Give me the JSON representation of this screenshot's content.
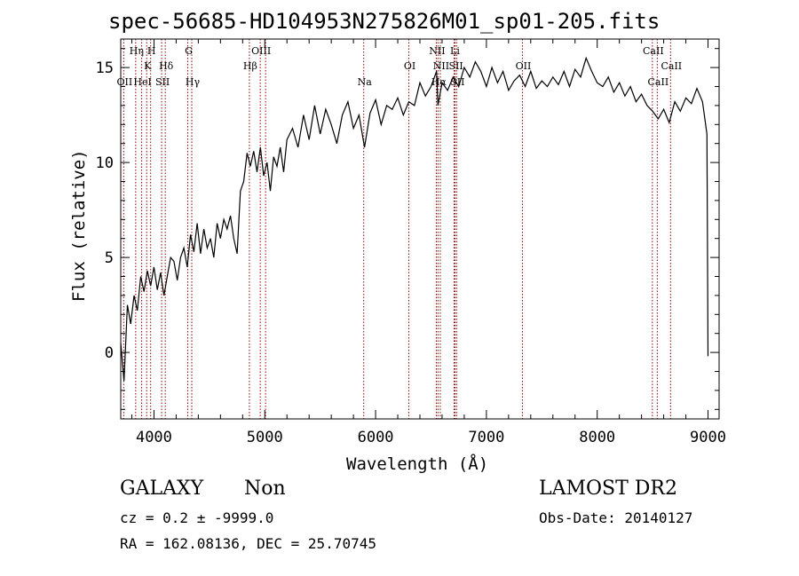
{
  "chart_data": {
    "type": "line",
    "title": "spec-56685-HD104953N275826M01_sp01-205.fits",
    "xlabel": "Wavelength (Å)",
    "ylabel": "Flux (relative)",
    "xlim": [
      3700,
      9100
    ],
    "ylim": [
      -3.5,
      16.5
    ],
    "x_ticks": [
      4000,
      5000,
      6000,
      7000,
      8000,
      9000
    ],
    "y_ticks": [
      0,
      5,
      10,
      15
    ],
    "series": [
      {
        "x": [
          3700,
          3730,
          3760,
          3790,
          3820,
          3850,
          3880,
          3910,
          3940,
          3970,
          4000,
          4030,
          4060,
          4090,
          4120,
          4150,
          4180,
          4210,
          4240,
          4270,
          4300,
          4330,
          4360,
          4390,
          4420,
          4450,
          4480,
          4510,
          4540,
          4570,
          4600,
          4630,
          4660,
          4690,
          4720,
          4750,
          4780,
          4810,
          4840,
          4870,
          4900,
          4930,
          4960,
          4990,
          5020,
          5050,
          5080,
          5110,
          5140,
          5170,
          5200,
          5250,
          5300,
          5350,
          5400,
          5450,
          5500,
          5550,
          5600,
          5650,
          5700,
          5750,
          5800,
          5850,
          5900,
          5950,
          6000,
          6050,
          6100,
          6150,
          6200,
          6250,
          6300,
          6350,
          6400,
          6450,
          6500,
          6550,
          6563,
          6600,
          6650,
          6700,
          6750,
          6800,
          6850,
          6900,
          6950,
          7000,
          7050,
          7100,
          7150,
          7200,
          7250,
          7300,
          7350,
          7400,
          7450,
          7500,
          7550,
          7600,
          7650,
          7700,
          7750,
          7800,
          7850,
          7900,
          7950,
          8000,
          8050,
          8100,
          8150,
          8200,
          8250,
          8300,
          8350,
          8400,
          8450,
          8500,
          8550,
          8600,
          8650,
          8700,
          8750,
          8800,
          8850,
          8900,
          8950,
          8990,
          9000
        ],
        "y": [
          0.5,
          -1.5,
          2.5,
          1.5,
          3.0,
          2.2,
          4.0,
          3.2,
          4.3,
          3.5,
          4.5,
          3.3,
          4.2,
          3.0,
          4.0,
          5.0,
          4.8,
          3.8,
          5.0,
          5.5,
          4.5,
          6.2,
          5.3,
          6.8,
          5.2,
          6.5,
          5.5,
          6.0,
          5.0,
          6.8,
          6.0,
          7.0,
          6.5,
          7.2,
          6.0,
          5.2,
          8.5,
          9.0,
          10.5,
          9.8,
          10.6,
          9.5,
          10.8,
          9.3,
          10.0,
          8.5,
          10.3,
          9.8,
          10.8,
          9.5,
          11.2,
          11.8,
          10.8,
          12.5,
          11.2,
          13.0,
          11.5,
          12.8,
          12.0,
          11.0,
          12.5,
          13.2,
          11.8,
          12.5,
          10.8,
          12.6,
          13.3,
          12.0,
          13.0,
          12.8,
          13.4,
          12.5,
          13.2,
          13.0,
          14.2,
          13.5,
          14.0,
          14.8,
          13.0,
          14.2,
          13.8,
          14.5,
          14.0,
          15.0,
          14.5,
          15.3,
          14.8,
          14.0,
          15.0,
          14.2,
          14.8,
          13.8,
          14.3,
          14.6,
          14.0,
          14.8,
          13.9,
          14.3,
          14.0,
          14.5,
          14.1,
          14.8,
          14.0,
          14.9,
          14.5,
          15.5,
          14.8,
          14.2,
          14.0,
          14.5,
          13.7,
          14.2,
          13.5,
          14.0,
          13.2,
          13.6,
          13.0,
          12.7,
          12.3,
          12.8,
          12.1,
          13.2,
          12.7,
          13.4,
          13.1,
          13.9,
          13.2,
          11.5,
          -0.2
        ]
      }
    ],
    "line_labels": [
      {
        "text": "Hη",
        "wave": 3835,
        "row": 0
      },
      {
        "text": "H",
        "wave": 3970,
        "row": 0
      },
      {
        "text": "K",
        "wave": 3934,
        "row": 1
      },
      {
        "text": "Hδ",
        "wave": 4102,
        "row": 1
      },
      {
        "text": "OII",
        "wave": 3727,
        "row": 2
      },
      {
        "text": "HeI",
        "wave": 3889,
        "row": 2
      },
      {
        "text": "SII",
        "wave": 4069,
        "row": 2
      },
      {
        "text": "G",
        "wave": 4305,
        "row": 0
      },
      {
        "text": "Hγ",
        "wave": 4341,
        "row": 2
      },
      {
        "text": "OIII",
        "wave": 4959,
        "row": 0
      },
      {
        "text": "Hβ",
        "wave": 4861,
        "row": 1
      },
      {
        "text": "Na",
        "wave": 5893,
        "row": 2
      },
      {
        "text": "OI",
        "wave": 6300,
        "row": 1
      },
      {
        "text": "NII",
        "wave": 6548,
        "row": 0
      },
      {
        "text": "Li",
        "wave": 6708,
        "row": 0
      },
      {
        "text": "NII",
        "wave": 6584,
        "row": 1
      },
      {
        "text": "SII",
        "wave": 6717,
        "row": 1
      },
      {
        "text": "Hα",
        "wave": 6563,
        "row": 2
      },
      {
        "text": "SII",
        "wave": 6731,
        "row": 2
      },
      {
        "text": "OII",
        "wave": 7325,
        "row": 1
      },
      {
        "text": "CaII",
        "wave": 8498,
        "row": 0
      },
      {
        "text": "CaII",
        "wave": 8662,
        "row": 1
      },
      {
        "text": "CaII",
        "wave": 8542,
        "row": 2
      }
    ],
    "line_markers": [
      3727,
      3835,
      3889,
      3934,
      3970,
      4069,
      4102,
      4305,
      4341,
      4861,
      4959,
      5007,
      5893,
      6300,
      6548,
      6563,
      6584,
      6708,
      6717,
      6731,
      7325,
      8498,
      8542,
      8662
    ],
    "marker_color": "#8b0000"
  },
  "info": {
    "class": "GALAXY",
    "subclass": "Non",
    "survey": "LAMOST DR2",
    "cz": "cz = 0.2 ± -9999.0",
    "obs_date": "Obs-Date: 20140127",
    "radec": "RA = 162.08136, DEC =  25.70745"
  }
}
